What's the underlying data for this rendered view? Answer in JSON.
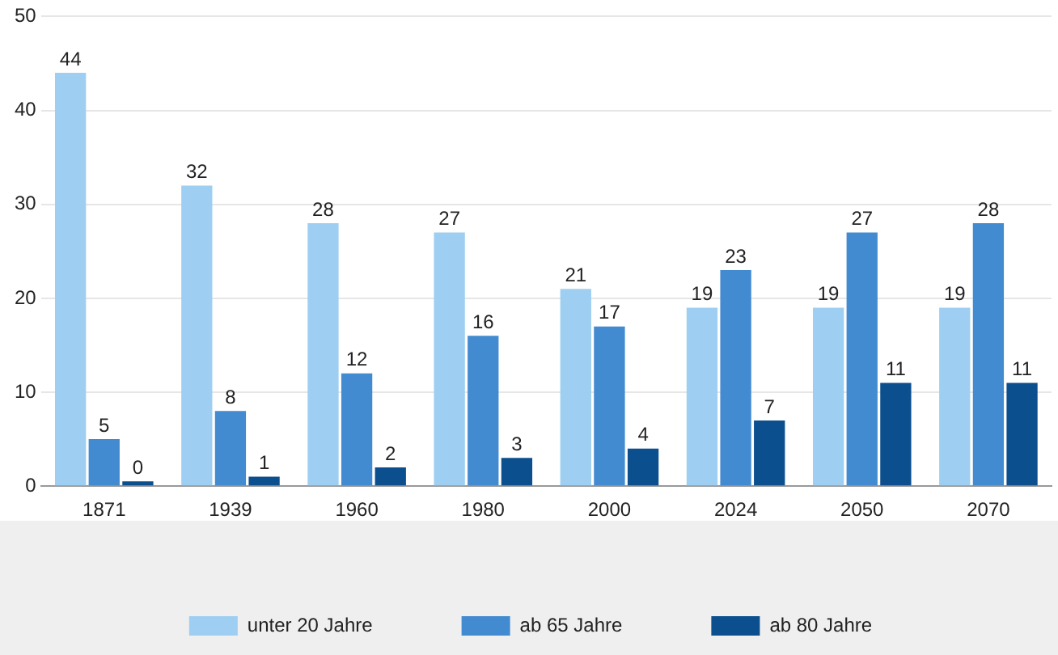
{
  "chart_data": {
    "type": "bar",
    "categories": [
      "1871",
      "1939",
      "1960",
      "1980",
      "2000",
      "2024",
      "2050",
      "2070"
    ],
    "series": [
      {
        "name": "unter 20 Jahre",
        "color": "#9ecff2",
        "values": [
          44,
          32,
          28,
          27,
          21,
          19,
          19,
          19
        ]
      },
      {
        "name": "ab 65 Jahre",
        "color": "#438bd0",
        "values": [
          5,
          8,
          12,
          16,
          17,
          23,
          27,
          28
        ]
      },
      {
        "name": "ab 80 Jahre",
        "color": "#0b4f8e",
        "values": [
          0,
          1,
          2,
          3,
          4,
          7,
          11,
          11
        ]
      }
    ],
    "ylim": [
      0,
      50
    ],
    "yticks": [
      0,
      10,
      20,
      30,
      40,
      50
    ],
    "grid": "y",
    "legend": "bottom",
    "data_labels": true
  }
}
